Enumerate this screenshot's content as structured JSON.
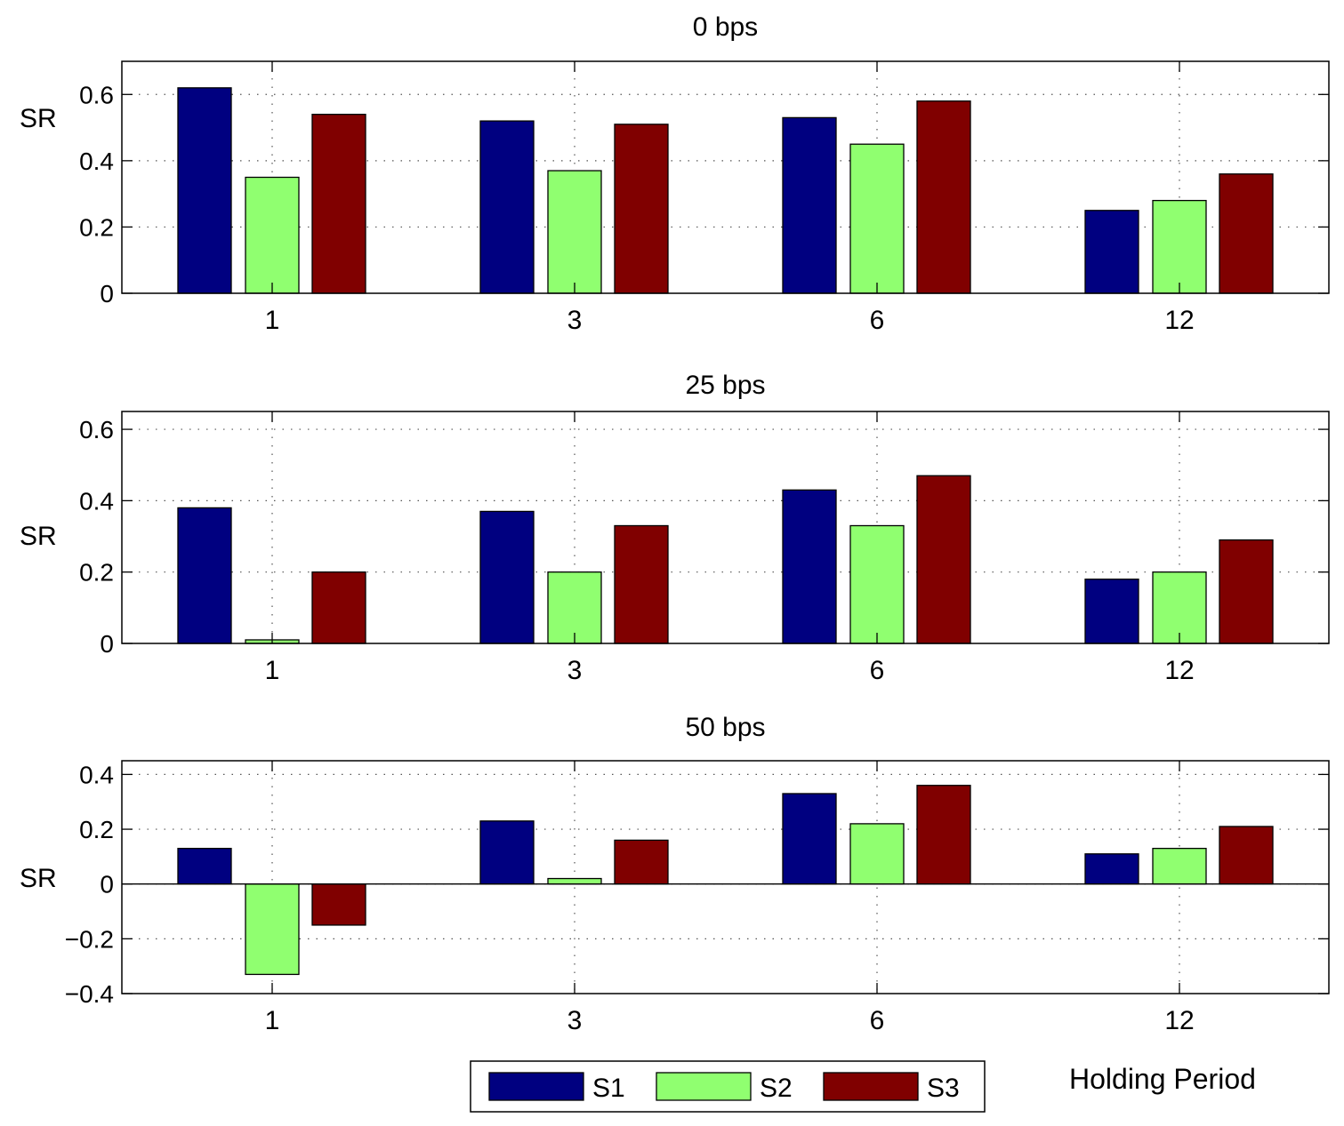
{
  "legend": {
    "items": [
      {
        "label": "S1",
        "color": "#000080"
      },
      {
        "label": "S2",
        "color": "#90ff70"
      },
      {
        "label": "S3",
        "color": "#800000"
      }
    ],
    "placement": "bottom-center"
  },
  "xlabel_shared": "Holding Period",
  "chart_data": [
    {
      "type": "bar",
      "title": "0 bps",
      "ylabel": "SR",
      "categories": [
        "1",
        "3",
        "6",
        "12"
      ],
      "ylim": [
        0,
        0.7
      ],
      "yticks": [
        0,
        0.2,
        0.4,
        0.6
      ],
      "ytick_labels": [
        "0",
        "0.2",
        "0.4",
        "0.6"
      ],
      "grid": true,
      "series": [
        {
          "name": "S1",
          "values": [
            0.62,
            0.52,
            0.53,
            0.25
          ]
        },
        {
          "name": "S2",
          "values": [
            0.35,
            0.37,
            0.45,
            0.28
          ]
        },
        {
          "name": "S3",
          "values": [
            0.54,
            0.51,
            0.58,
            0.36
          ]
        }
      ]
    },
    {
      "type": "bar",
      "title": "25 bps",
      "ylabel": "SR",
      "categories": [
        "1",
        "3",
        "6",
        "12"
      ],
      "ylim": [
        0,
        0.65
      ],
      "yticks": [
        0,
        0.2,
        0.4,
        0.6
      ],
      "ytick_labels": [
        "0",
        "0.2",
        "0.4",
        "0.6"
      ],
      "grid": true,
      "series": [
        {
          "name": "S1",
          "values": [
            0.38,
            0.37,
            0.43,
            0.18
          ]
        },
        {
          "name": "S2",
          "values": [
            0.01,
            0.2,
            0.33,
            0.2
          ]
        },
        {
          "name": "S3",
          "values": [
            0.2,
            0.33,
            0.47,
            0.29
          ]
        }
      ]
    },
    {
      "type": "bar",
      "title": "50 bps",
      "ylabel": "SR",
      "categories": [
        "1",
        "3",
        "6",
        "12"
      ],
      "ylim": [
        -0.4,
        0.45
      ],
      "yticks": [
        -0.4,
        -0.2,
        0,
        0.2,
        0.4
      ],
      "ytick_labels": [
        "−0.4",
        "−0.2",
        "0",
        "0.2",
        "0.4"
      ],
      "grid": true,
      "series": [
        {
          "name": "S1",
          "values": [
            0.13,
            0.23,
            0.33,
            0.11
          ]
        },
        {
          "name": "S2",
          "values": [
            -0.33,
            0.02,
            0.22,
            0.13
          ]
        },
        {
          "name": "S3",
          "values": [
            -0.15,
            0.16,
            0.36,
            0.21
          ]
        }
      ]
    }
  ]
}
